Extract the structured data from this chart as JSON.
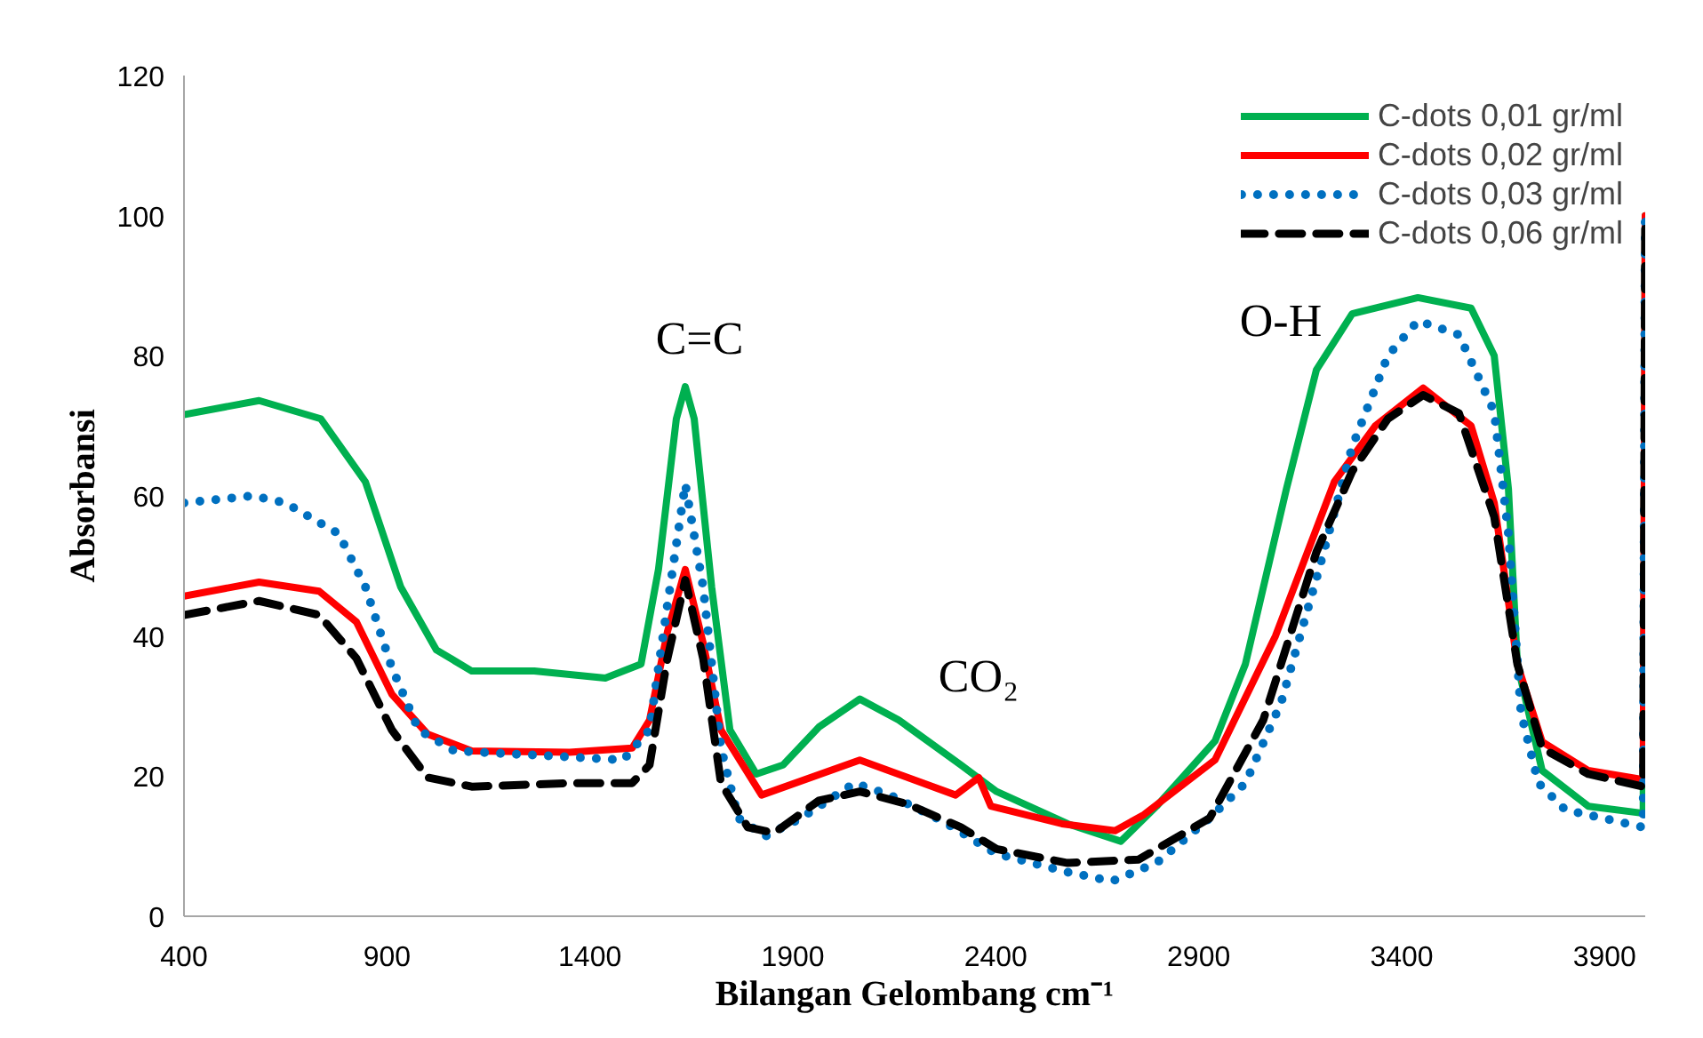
{
  "chart_data": {
    "type": "line",
    "xlabel": "Bilangan Gelombang cm⁻¹",
    "ylabel": "Absorbansi",
    "xlim": [
      400,
      4000
    ],
    "xticks": [
      400,
      900,
      1400,
      1900,
      2400,
      2900,
      3400,
      3900
    ],
    "ylim": [
      0,
      120
    ],
    "yticks": [
      0,
      20,
      40,
      60,
      80,
      100,
      120
    ],
    "grid": false,
    "legend": "top right",
    "marker": "none",
    "annotations": [
      "C=C",
      "CO₂",
      "O-H"
    ],
    "series": [
      {
        "name": "C-dots 0,01 gr/ml",
        "color": "#00b050",
        "line_style": "solid",
        "x": [
          400,
          585,
          737,
          847,
          934,
          1022,
          1109,
          1263,
          1438,
          1526,
          1569,
          1613,
          1635,
          1657,
          1700,
          1745,
          1810,
          1876,
          1964,
          2065,
          2161,
          2314,
          2402,
          2577,
          2708,
          2796,
          2940,
          3015,
          3116,
          3190,
          3278,
          3440,
          3571,
          3628,
          3663,
          3685,
          3746,
          3860,
          3995,
          4000
        ],
        "values": [
          71.6,
          73.6,
          71,
          62,
          47,
          38,
          35,
          35,
          34,
          36,
          49.5,
          71,
          75.6,
          71,
          47,
          26.6,
          20.3,
          21.6,
          27,
          31,
          28,
          21.6,
          17.8,
          13.2,
          10.7,
          15.7,
          25,
          36,
          61,
          78,
          86,
          88.3,
          86.8,
          80,
          61,
          36,
          20.8,
          15.7,
          14.7,
          100
        ]
      },
      {
        "name": "C-dots 0,02 gr/ml",
        "color": "#ff0000",
        "line_style": "solid",
        "x": [
          400,
          585,
          733,
          825,
          912,
          1000,
          1109,
          1350,
          1504,
          1547,
          1591,
          1635,
          1679,
          1723,
          1823,
          2065,
          2301,
          2358,
          2388,
          2563,
          2694,
          2765,
          2940,
          3089,
          3234,
          3335,
          3453,
          3571,
          3628,
          3685,
          3746,
          3860,
          3995,
          4000
        ],
        "values": [
          45.7,
          47.7,
          46.4,
          42,
          31.7,
          26,
          23.6,
          23.4,
          24,
          28,
          40.6,
          49.5,
          39,
          26.6,
          17.3,
          22.3,
          17.3,
          19.8,
          15.7,
          13.2,
          12.2,
          14.5,
          22.3,
          40,
          62,
          70,
          75.4,
          70,
          59,
          36,
          24.9,
          20.8,
          19.5,
          100
        ]
      },
      {
        "name": "C-dots 0,03 gr/ml",
        "color": "#0070c0",
        "line_style": "dotted",
        "x": [
          400,
          569,
          650,
          781,
          847,
          912,
          978,
          1066,
          1263,
          1482,
          1547,
          1591,
          1635,
          1679,
          1723,
          1766,
          1832,
          1920,
          2052,
          2139,
          2271,
          2402,
          2577,
          2686,
          2796,
          2927,
          3015,
          3103,
          3190,
          3278,
          3366,
          3440,
          3541,
          3628,
          3663,
          3694,
          3737,
          3803,
          3995,
          4000
        ],
        "values": [
          59,
          60,
          59,
          54.6,
          47,
          35.5,
          26.6,
          23.6,
          23,
          22.3,
          26.6,
          44.4,
          61.7,
          47,
          24,
          14,
          11.4,
          14,
          19,
          17.3,
          13.5,
          8.9,
          6.3,
          5,
          7.6,
          14,
          19,
          30.5,
          48.2,
          67,
          80,
          85,
          83,
          72,
          54.6,
          29,
          19,
          15.2,
          12.7,
          100
        ]
      },
      {
        "name": "C-dots 0,06 gr/ml",
        "color": "#000000",
        "line_style": "dashed",
        "x": [
          400,
          585,
          733,
          825,
          912,
          1000,
          1109,
          1350,
          1504,
          1547,
          1591,
          1635,
          1679,
          1723,
          1789,
          1854,
          1964,
          2065,
          2183,
          2314,
          2402,
          2577,
          2752,
          2927,
          3059,
          3190,
          3278,
          3366,
          3453,
          3541,
          3628,
          3685,
          3746,
          3860,
          3995,
          4000
        ],
        "values": [
          43,
          45,
          43,
          36.8,
          26.6,
          19.8,
          18.5,
          19,
          19,
          21.6,
          36.8,
          48,
          36.8,
          19,
          12.7,
          11.9,
          16.5,
          17.8,
          16,
          12.7,
          9.6,
          7.6,
          8.1,
          14,
          28,
          52,
          63.5,
          71,
          74.4,
          71.8,
          57,
          36,
          24,
          20.3,
          18.5,
          100
        ]
      }
    ]
  }
}
